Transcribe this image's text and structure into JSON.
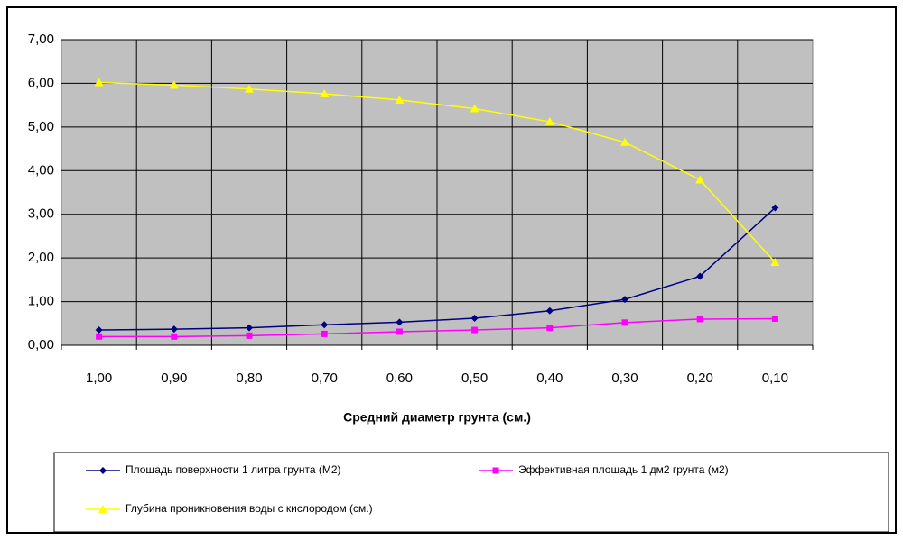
{
  "chart_data": {
    "type": "line",
    "x_label": "Средний диаметр грунта (см.)",
    "categories": [
      "1,00",
      "0,90",
      "0,80",
      "0,70",
      "0,60",
      "0,50",
      "0,40",
      "0,30",
      "0,20",
      "0,10"
    ],
    "ylim": [
      0,
      7
    ],
    "yticks": [
      {
        "value": 0,
        "label": "0,00"
      },
      {
        "value": 1,
        "label": "1,00"
      },
      {
        "value": 2,
        "label": "2,00"
      },
      {
        "value": 3,
        "label": "3,00"
      },
      {
        "value": 4,
        "label": "4,00"
      },
      {
        "value": 5,
        "label": "5,00"
      },
      {
        "value": 6,
        "label": "6,00"
      },
      {
        "value": 7,
        "label": "7,00"
      }
    ],
    "grid": true,
    "background": "#c0c0c0",
    "legend": "bottom",
    "series": [
      {
        "name": "Площадь поверхности 1 литра грунта (М2)",
        "color": "#000080",
        "marker": "diamond",
        "values": [
          0.35,
          0.37,
          0.4,
          0.47,
          0.53,
          0.62,
          0.79,
          1.05,
          1.58,
          3.15
        ]
      },
      {
        "name": "Эффективная площадь 1 дм2 грунта (м2)",
        "color": "#ff00ff",
        "marker": "square",
        "values": [
          0.2,
          0.2,
          0.22,
          0.26,
          0.31,
          0.35,
          0.4,
          0.52,
          0.6,
          0.61
        ]
      },
      {
        "name": "Глубина проникновения воды с кислородом (см.)",
        "color": "#ffff00",
        "marker": "triangle",
        "values": [
          6.02,
          5.96,
          5.87,
          5.76,
          5.62,
          5.42,
          5.12,
          4.65,
          3.79,
          1.9
        ]
      }
    ]
  }
}
